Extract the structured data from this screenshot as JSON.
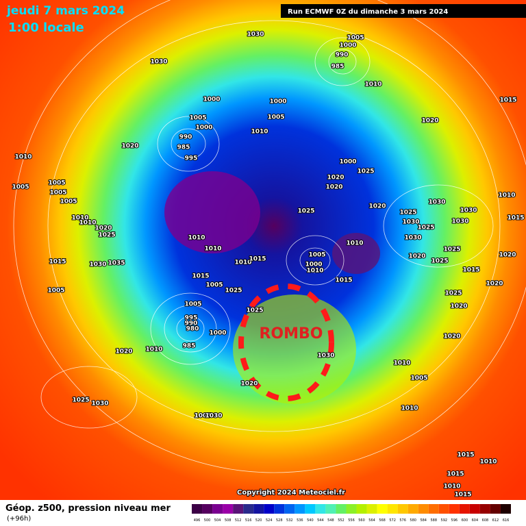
{
  "header": {
    "date": "jeudi 7 mars 2024",
    "time": "1:00 locale",
    "run": "Run ECMWF 0Z du dimanche 3 mars 2024"
  },
  "annotation": "ROMBO",
  "footer": {
    "copyright": "Copyright 2024 Meteociel.fr",
    "legend_title": "Géop. z500, pression niveau mer",
    "lead_time": "(+96h)"
  },
  "isobar_labels": [
    1030,
    1030,
    1005,
    1000,
    990,
    985,
    1010,
    1015,
    1000,
    1000,
    1005,
    1020,
    1005,
    1000,
    1010,
    990,
    985,
    995,
    1020,
    1010,
    1000,
    1025,
    1020,
    1020,
    1005,
    1005,
    1005,
    1005,
    1010,
    1020,
    1025,
    1030,
    1025,
    1030,
    1030,
    1030,
    1010,
    1010,
    1025,
    1020,
    1025,
    1010,
    1010,
    1030,
    1010,
    1015,
    1010,
    1015,
    1005,
    1000,
    1015,
    1030,
    1035,
    1025,
    1020,
    1025,
    1020,
    1015,
    1015,
    1010,
    1015,
    1005,
    1020,
    1025,
    1005,
    1025,
    1020,
    1005,
    995,
    990,
    980,
    1000,
    985,
    1025,
    1010,
    1020,
    1030,
    1020,
    1010,
    1005,
    1020,
    1025,
    1030,
    1010,
    1005,
    1030,
    1015,
    1010,
    1015,
    1010,
    1015
  ],
  "colorbar": {
    "values": [
      496,
      500,
      504,
      508,
      512,
      516,
      520,
      524,
      528,
      532,
      536,
      540,
      544,
      548,
      552,
      556,
      560,
      564,
      568,
      572,
      576,
      580,
      584,
      588,
      592,
      596,
      600,
      604,
      608,
      612,
      616
    ],
    "colors": [
      "#3c0046",
      "#55005f",
      "#7a0090",
      "#9a00a8",
      "#5a1478",
      "#2a2a8c",
      "#1414a0",
      "#0000c8",
      "#0032dc",
      "#0064f0",
      "#0096ff",
      "#00c8ff",
      "#32e6e6",
      "#50f0b4",
      "#64f064",
      "#8cf028",
      "#b4f000",
      "#dcf000",
      "#ffff00",
      "#ffe600",
      "#ffc800",
      "#ffaa00",
      "#ff8c00",
      "#ff6e00",
      "#ff5000",
      "#ff3200",
      "#e61400",
      "#c80000",
      "#960000",
      "#640000",
      "#1e0000"
    ]
  }
}
